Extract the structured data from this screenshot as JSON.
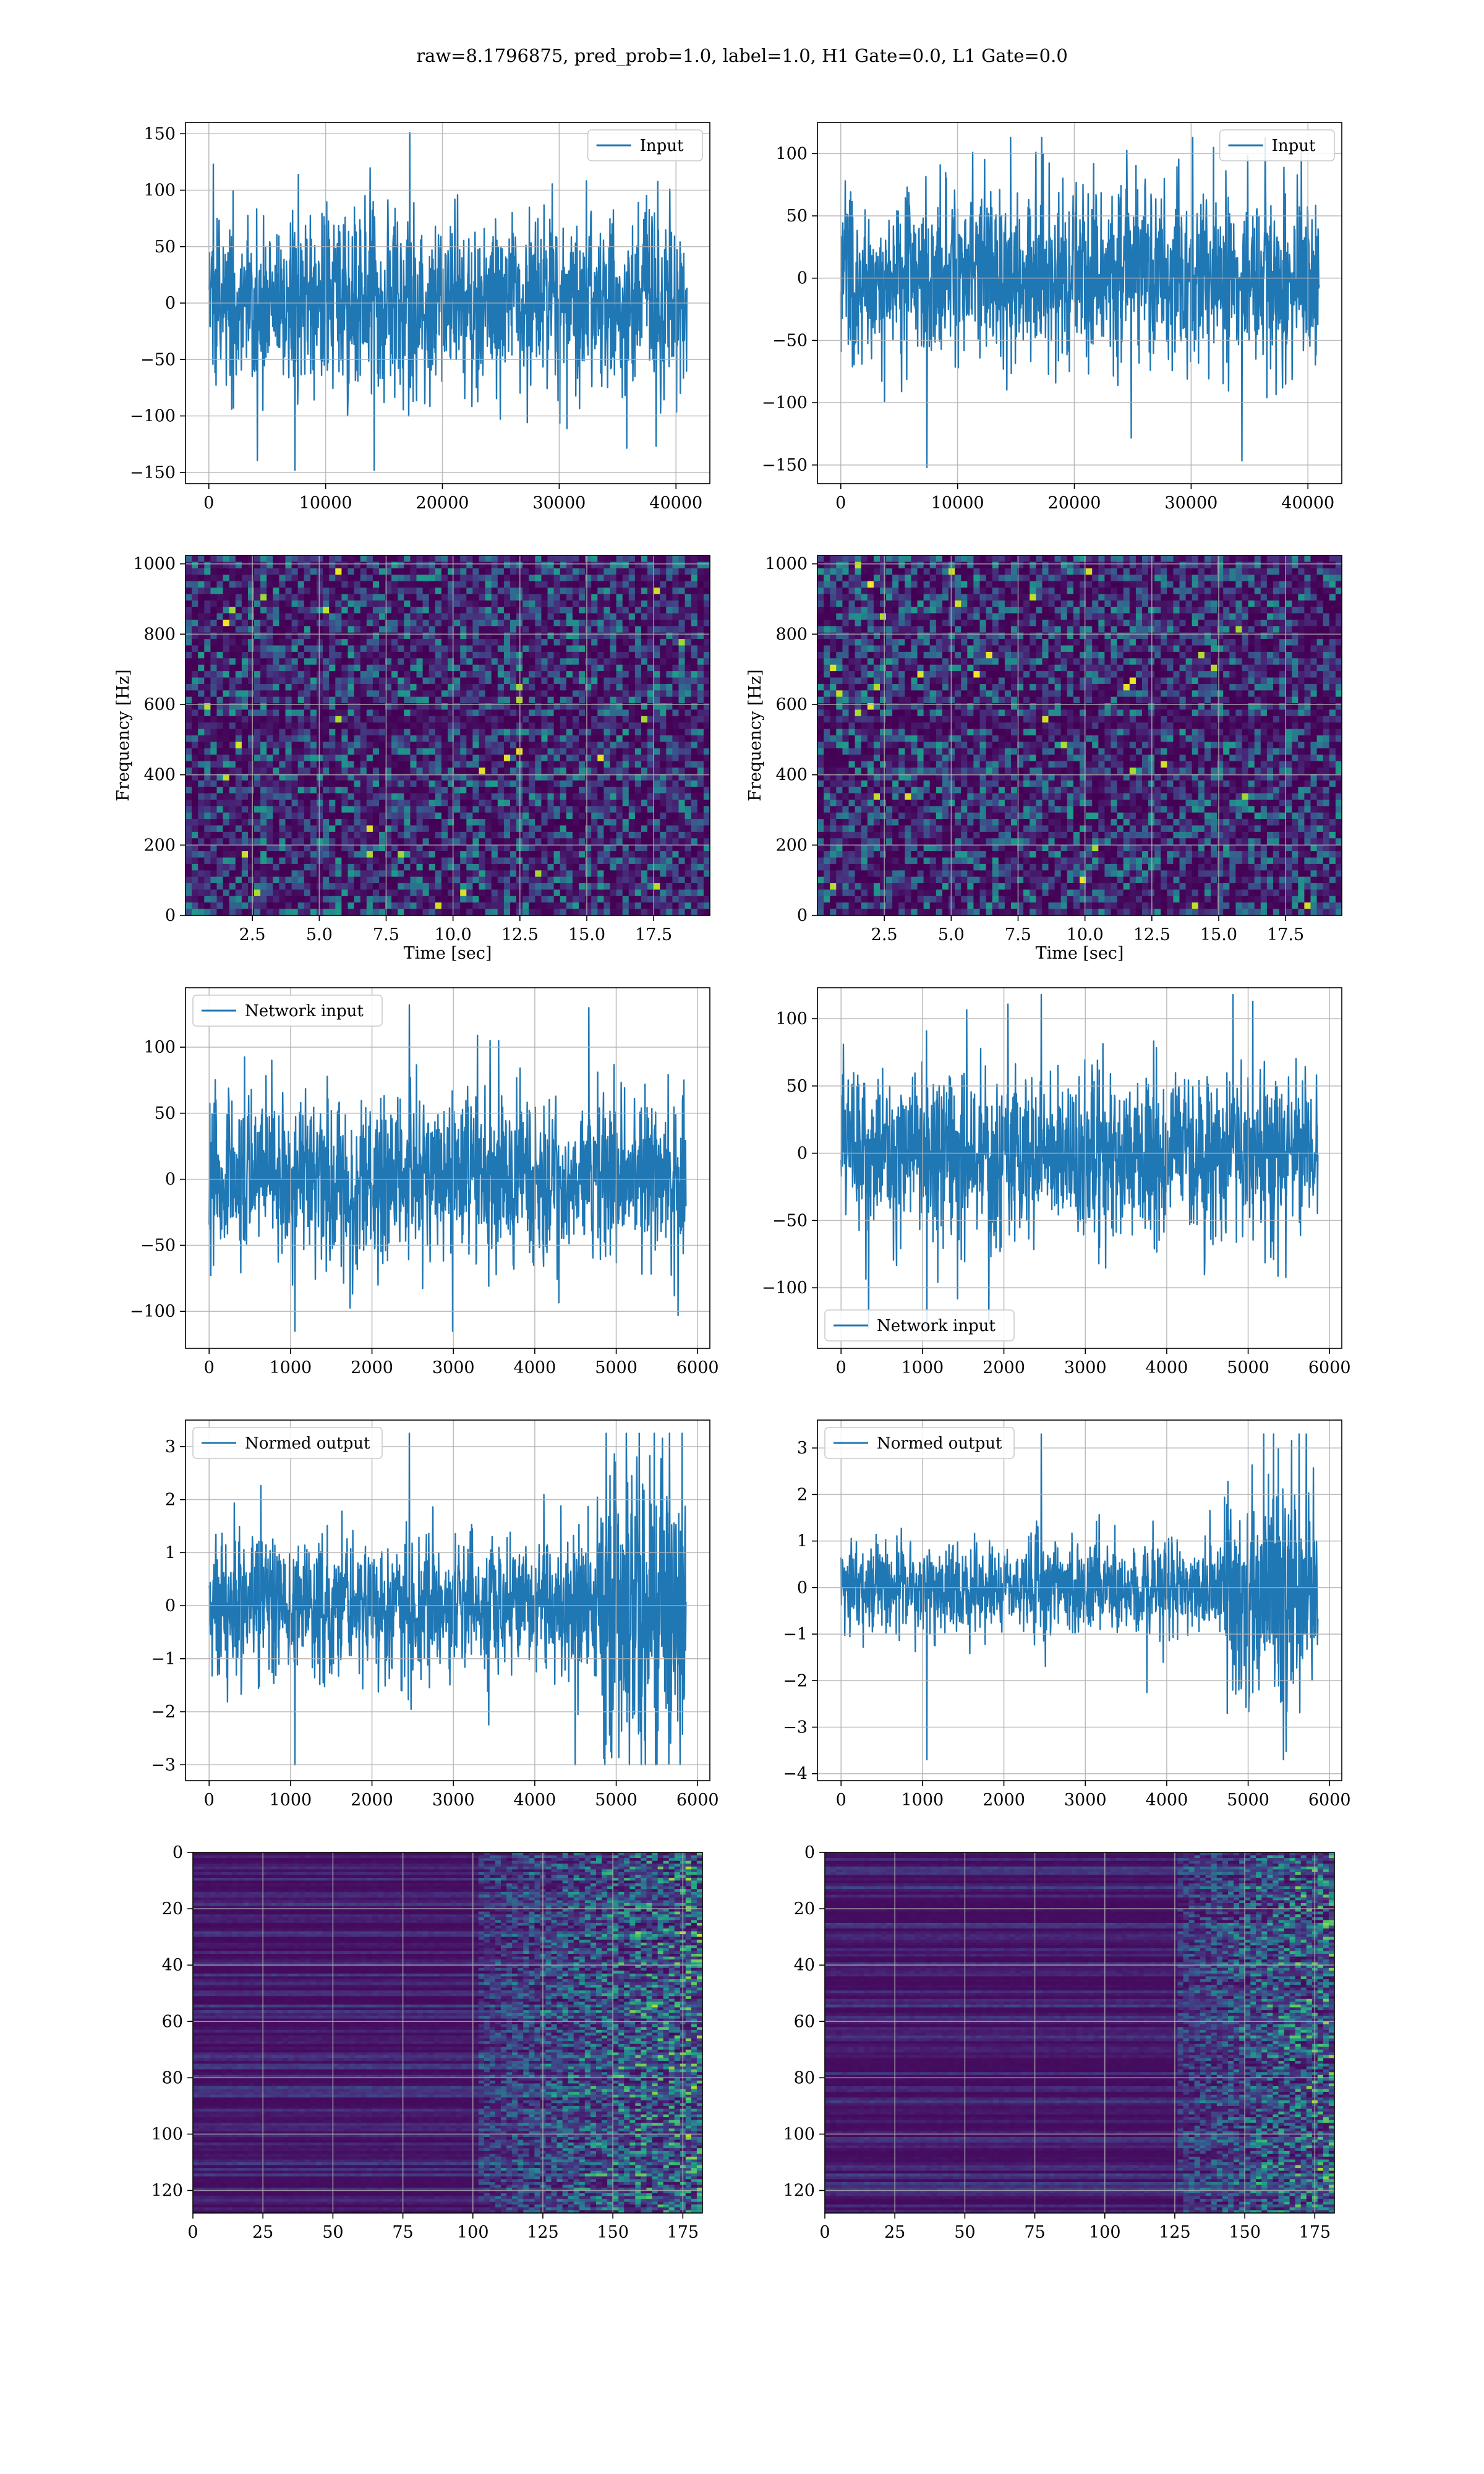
{
  "title": "raw=8.1796875, pred_prob=1.0, label=1.0, H1 Gate=0.0, L1 Gate=0.0",
  "colors": {
    "line": "#1f77b4",
    "viridis_dark": "#440154",
    "viridis_mid": "#21918c",
    "viridis_bright": "#fde725",
    "grid": "#b0b0b0"
  },
  "chart_data": [
    {
      "id": "r0c0",
      "type": "line",
      "legend": "Input",
      "legend_loc": "upper right",
      "xlim": [
        -2000,
        42900
      ],
      "ylim": [
        -160,
        160
      ],
      "xticks": [
        0,
        10000,
        20000,
        30000,
        40000
      ],
      "yticks": [
        -150,
        -100,
        -50,
        0,
        50,
        100,
        150
      ],
      "signal": {
        "x_end": 40960,
        "sigma": 30,
        "peak_max": 151,
        "peak_min": -148,
        "envelope": "stationary"
      },
      "grid": true
    },
    {
      "id": "r0c1",
      "type": "line",
      "legend": "Input",
      "legend_loc": "upper right",
      "xlim": [
        -2000,
        42900
      ],
      "ylim": [
        -165,
        125
      ],
      "xticks": [
        0,
        10000,
        20000,
        30000,
        40000
      ],
      "yticks": [
        -150,
        -100,
        -50,
        0,
        50,
        100
      ],
      "signal": {
        "x_end": 40960,
        "sigma": 28,
        "peak_max": 113,
        "peak_min": -152,
        "envelope": "stationary"
      },
      "grid": true
    },
    {
      "id": "r1c0",
      "type": "heatmap",
      "subtype": "spectrogram",
      "xlim": [
        0,
        19.6
      ],
      "ylim": [
        0,
        1024
      ],
      "xticks": [
        2.5,
        5.0,
        7.5,
        10.0,
        12.5,
        15.0,
        17.5
      ],
      "yticks": [
        0,
        200,
        400,
        600,
        800,
        1000
      ],
      "xlabel": "Time [sec]",
      "ylabel": "Frequency [Hz]",
      "grid": true
    },
    {
      "id": "r1c1",
      "type": "heatmap",
      "subtype": "spectrogram",
      "xlim": [
        0,
        19.6
      ],
      "ylim": [
        0,
        1024
      ],
      "xticks": [
        2.5,
        5.0,
        7.5,
        10.0,
        12.5,
        15.0,
        17.5
      ],
      "yticks": [
        0,
        200,
        400,
        600,
        800,
        1000
      ],
      "xlabel": "Time [sec]",
      "ylabel": "Frequency [Hz]",
      "grid": true
    },
    {
      "id": "r2c0",
      "type": "line",
      "legend": "Network input",
      "legend_loc": "upper left",
      "xlim": [
        -290,
        6150
      ],
      "ylim": [
        -128,
        145
      ],
      "xticks": [
        0,
        1000,
        2000,
        3000,
        4000,
        5000,
        6000
      ],
      "yticks": [
        -100,
        -50,
        0,
        50,
        100
      ],
      "signal": {
        "x_end": 5856,
        "sigma": 25,
        "peak_max": 132,
        "peak_min": -115,
        "envelope": "stationary"
      },
      "grid": true
    },
    {
      "id": "r2c1",
      "type": "line",
      "legend": "Network input",
      "legend_loc": "lower left",
      "xlim": [
        -290,
        6150
      ],
      "ylim": [
        -145,
        123
      ],
      "xticks": [
        0,
        1000,
        2000,
        3000,
        4000,
        5000,
        6000
      ],
      "yticks": [
        -100,
        -50,
        0,
        50,
        100
      ],
      "signal": {
        "x_end": 5856,
        "sigma": 24,
        "peak_max": 118,
        "peak_min": -130,
        "envelope": "stationary"
      },
      "grid": true
    },
    {
      "id": "r3c0",
      "type": "line",
      "legend": "Normed output",
      "legend_loc": "upper left",
      "xlim": [
        -290,
        6150
      ],
      "ylim": [
        -3.3,
        3.5
      ],
      "xticks": [
        0,
        1000,
        2000,
        3000,
        4000,
        5000,
        6000
      ],
      "yticks": [
        -3,
        -2,
        -1,
        0,
        1,
        2,
        3
      ],
      "signal": {
        "x_end": 5856,
        "sigma": 0.5,
        "peak_max": 3.25,
        "peak_min": -3.0,
        "envelope": "burst",
        "burst_start": 4750,
        "burst_gain": 2.4
      },
      "grid": true
    },
    {
      "id": "r3c1",
      "type": "line",
      "legend": "Normed output",
      "legend_loc": "upper left",
      "xlim": [
        -290,
        6150
      ],
      "ylim": [
        -4.15,
        3.6
      ],
      "xticks": [
        0,
        1000,
        2000,
        3000,
        4000,
        5000,
        6000
      ],
      "yticks": [
        -4,
        -3,
        -2,
        -1,
        0,
        1,
        2,
        3
      ],
      "signal": {
        "x_end": 5856,
        "sigma": 0.38,
        "peak_max": 3.3,
        "peak_min": -3.7,
        "envelope": "burst",
        "burst_start": 4700,
        "burst_gain": 2.5
      },
      "grid": true
    },
    {
      "id": "r4c0",
      "type": "heatmap",
      "subtype": "feature-map",
      "xlim": [
        0,
        182
      ],
      "ylim": [
        128,
        0
      ],
      "xticks": [
        0,
        25,
        50,
        75,
        100,
        125,
        150,
        175
      ],
      "yticks": [
        0,
        20,
        40,
        60,
        80,
        100,
        120
      ],
      "activity_onset": 100,
      "grid": true
    },
    {
      "id": "r4c1",
      "type": "heatmap",
      "subtype": "feature-map",
      "xlim": [
        0,
        182
      ],
      "ylim": [
        128,
        0
      ],
      "xticks": [
        0,
        25,
        50,
        75,
        100,
        125,
        150,
        175
      ],
      "yticks": [
        0,
        20,
        40,
        60,
        80,
        100,
        120
      ],
      "activity_onset": 125,
      "grid": true
    }
  ]
}
